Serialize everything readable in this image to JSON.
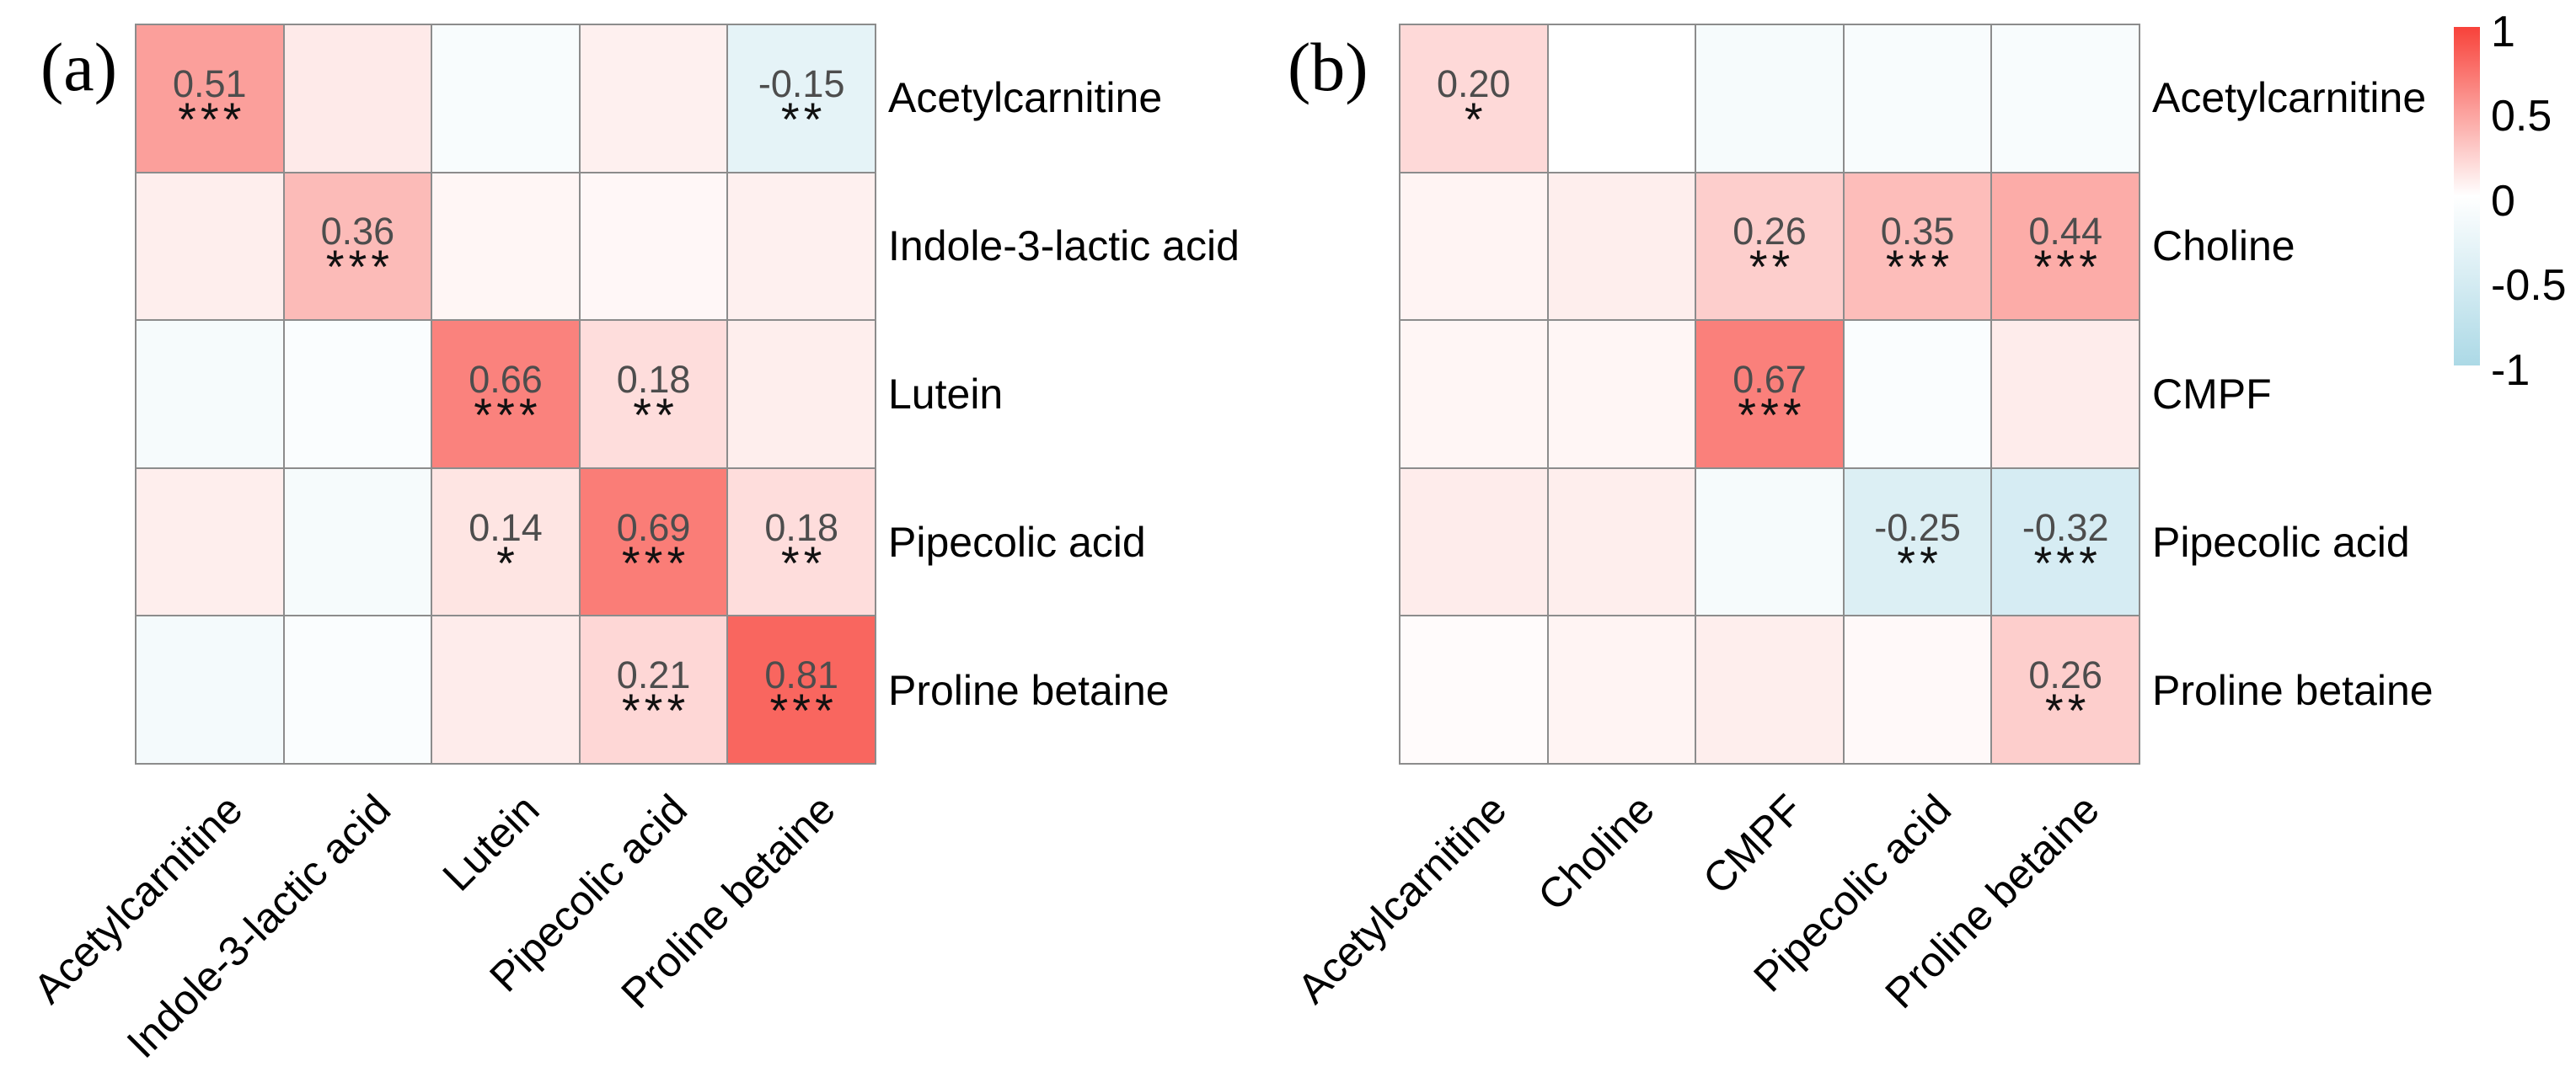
{
  "figure": {
    "background_color": "#FFFFFF",
    "gridline_color": "#8C8C8C",
    "value_text_color": "#4D4D4D",
    "label_text_color": "#000000"
  },
  "chart_data": [
    {
      "type": "heatmap",
      "panel_label": "(a)",
      "columns": [
        "Acetylcarnitine",
        "Indole-3-lactic acid",
        "Lutein",
        "Pipecolic acid",
        "Proline betaine"
      ],
      "rows": [
        "Acetylcarnitine",
        "Indole-3-lactic acid",
        "Lutein",
        "Pipecolic acid",
        "Proline betaine"
      ],
      "value_range": [
        -1,
        1
      ],
      "cells": [
        [
          {
            "r": 0.51,
            "label": "0.51",
            "stars": "***"
          },
          {
            "r": 0.11,
            "label": "",
            "stars": ""
          },
          {
            "r": -0.02,
            "label": "",
            "stars": ""
          },
          {
            "r": 0.08,
            "label": "",
            "stars": ""
          },
          {
            "r": -0.15,
            "label": "-0.15",
            "stars": "**"
          }
        ],
        [
          {
            "r": 0.09,
            "label": "",
            "stars": ""
          },
          {
            "r": 0.36,
            "label": "0.36",
            "stars": "***"
          },
          {
            "r": 0.05,
            "label": "",
            "stars": ""
          },
          {
            "r": 0.04,
            "label": "",
            "stars": ""
          },
          {
            "r": 0.08,
            "label": "",
            "stars": ""
          }
        ],
        [
          {
            "r": -0.03,
            "label": "",
            "stars": ""
          },
          {
            "r": -0.01,
            "label": "",
            "stars": ""
          },
          {
            "r": 0.66,
            "label": "0.66",
            "stars": "***"
          },
          {
            "r": 0.18,
            "label": "0.18",
            "stars": "**"
          },
          {
            "r": 0.09,
            "label": "",
            "stars": ""
          }
        ],
        [
          {
            "r": 0.09,
            "label": "",
            "stars": ""
          },
          {
            "r": -0.03,
            "label": "",
            "stars": ""
          },
          {
            "r": 0.14,
            "label": "0.14",
            "stars": "*"
          },
          {
            "r": 0.69,
            "label": "0.69",
            "stars": "***"
          },
          {
            "r": 0.18,
            "label": "0.18",
            "stars": "**"
          }
        ],
        [
          {
            "r": -0.04,
            "label": "",
            "stars": ""
          },
          {
            "r": -0.01,
            "label": "",
            "stars": ""
          },
          {
            "r": 0.1,
            "label": "",
            "stars": ""
          },
          {
            "r": 0.21,
            "label": "0.21",
            "stars": "***"
          },
          {
            "r": 0.81,
            "label": "0.81",
            "stars": "***"
          }
        ]
      ]
    },
    {
      "type": "heatmap",
      "panel_label": "(b)",
      "columns": [
        "Acetylcarnitine",
        "Choline",
        "CMPF",
        "Pipecolic acid",
        "Proline betaine"
      ],
      "rows": [
        "Acetylcarnitine",
        "Choline",
        "CMPF",
        "Pipecolic acid",
        "Proline betaine"
      ],
      "value_range": [
        -1,
        1
      ],
      "cells": [
        [
          {
            "r": 0.2,
            "label": "0.20",
            "stars": "*"
          },
          {
            "r": 0.0,
            "label": "",
            "stars": ""
          },
          {
            "r": -0.03,
            "label": "",
            "stars": ""
          },
          {
            "r": -0.02,
            "label": "",
            "stars": ""
          },
          {
            "r": -0.02,
            "label": "",
            "stars": ""
          }
        ],
        [
          {
            "r": 0.06,
            "label": "",
            "stars": ""
          },
          {
            "r": 0.09,
            "label": "",
            "stars": ""
          },
          {
            "r": 0.26,
            "label": "0.26",
            "stars": "**"
          },
          {
            "r": 0.35,
            "label": "0.35",
            "stars": "***"
          },
          {
            "r": 0.44,
            "label": "0.44",
            "stars": "***"
          }
        ],
        [
          {
            "r": 0.05,
            "label": "",
            "stars": ""
          },
          {
            "r": 0.05,
            "label": "",
            "stars": ""
          },
          {
            "r": 0.67,
            "label": "0.67",
            "stars": "***"
          },
          {
            "r": -0.01,
            "label": "",
            "stars": ""
          },
          {
            "r": 0.1,
            "label": "",
            "stars": ""
          }
        ],
        [
          {
            "r": 0.1,
            "label": "",
            "stars": ""
          },
          {
            "r": 0.09,
            "label": "",
            "stars": ""
          },
          {
            "r": -0.03,
            "label": "",
            "stars": ""
          },
          {
            "r": -0.25,
            "label": "-0.25",
            "stars": "**"
          },
          {
            "r": -0.32,
            "label": "-0.32",
            "stars": "***"
          }
        ],
        [
          {
            "r": 0.02,
            "label": "",
            "stars": ""
          },
          {
            "r": 0.06,
            "label": "",
            "stars": ""
          },
          {
            "r": 0.09,
            "label": "",
            "stars": ""
          },
          {
            "r": 0.03,
            "label": "",
            "stars": ""
          },
          {
            "r": 0.26,
            "label": "0.26",
            "stars": "**"
          }
        ]
      ]
    },
    {
      "type": "colorbar",
      "ticks": [
        "1",
        "0.5",
        "0",
        "-0.5",
        "-1"
      ],
      "tick_values": [
        1,
        0.5,
        0,
        -0.5,
        -1
      ],
      "max_color": "#F8423A",
      "mid_color": "#FFFFFF",
      "min_color": "#ACD9E6"
    }
  ]
}
